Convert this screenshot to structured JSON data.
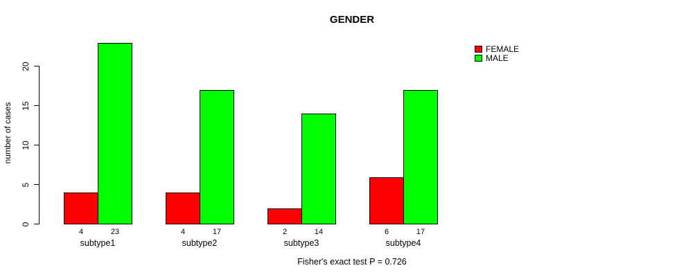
{
  "chart": {
    "title": "GENDER",
    "y_axis_label": "number of cases",
    "footer": "Fisher's exact test P = 0.726"
  },
  "legend": {
    "items": [
      {
        "label": "FEMALE",
        "color": "#ff0000"
      },
      {
        "label": "MALE",
        "color": "#00ff00"
      }
    ]
  },
  "chart_data": {
    "type": "bar",
    "title": "GENDER",
    "xlabel": "",
    "ylabel": "number of cases",
    "categories": [
      "subtype1",
      "subtype2",
      "subtype3",
      "subtype4"
    ],
    "series": [
      {
        "name": "FEMALE",
        "color": "#ff0000",
        "values": [
          4,
          4,
          2,
          6
        ]
      },
      {
        "name": "MALE",
        "color": "#00ff00",
        "values": [
          23,
          17,
          14,
          17
        ]
      }
    ],
    "bar_value_labels": [
      [
        4,
        23
      ],
      [
        4,
        17
      ],
      [
        2,
        14
      ],
      [
        6,
        17
      ]
    ],
    "y_ticks": [
      0,
      5,
      10,
      15,
      20
    ],
    "ylim": [
      0,
      23
    ],
    "grid": false,
    "legend_position": "top-right",
    "annotation": "Fisher's exact test P = 0.726"
  }
}
